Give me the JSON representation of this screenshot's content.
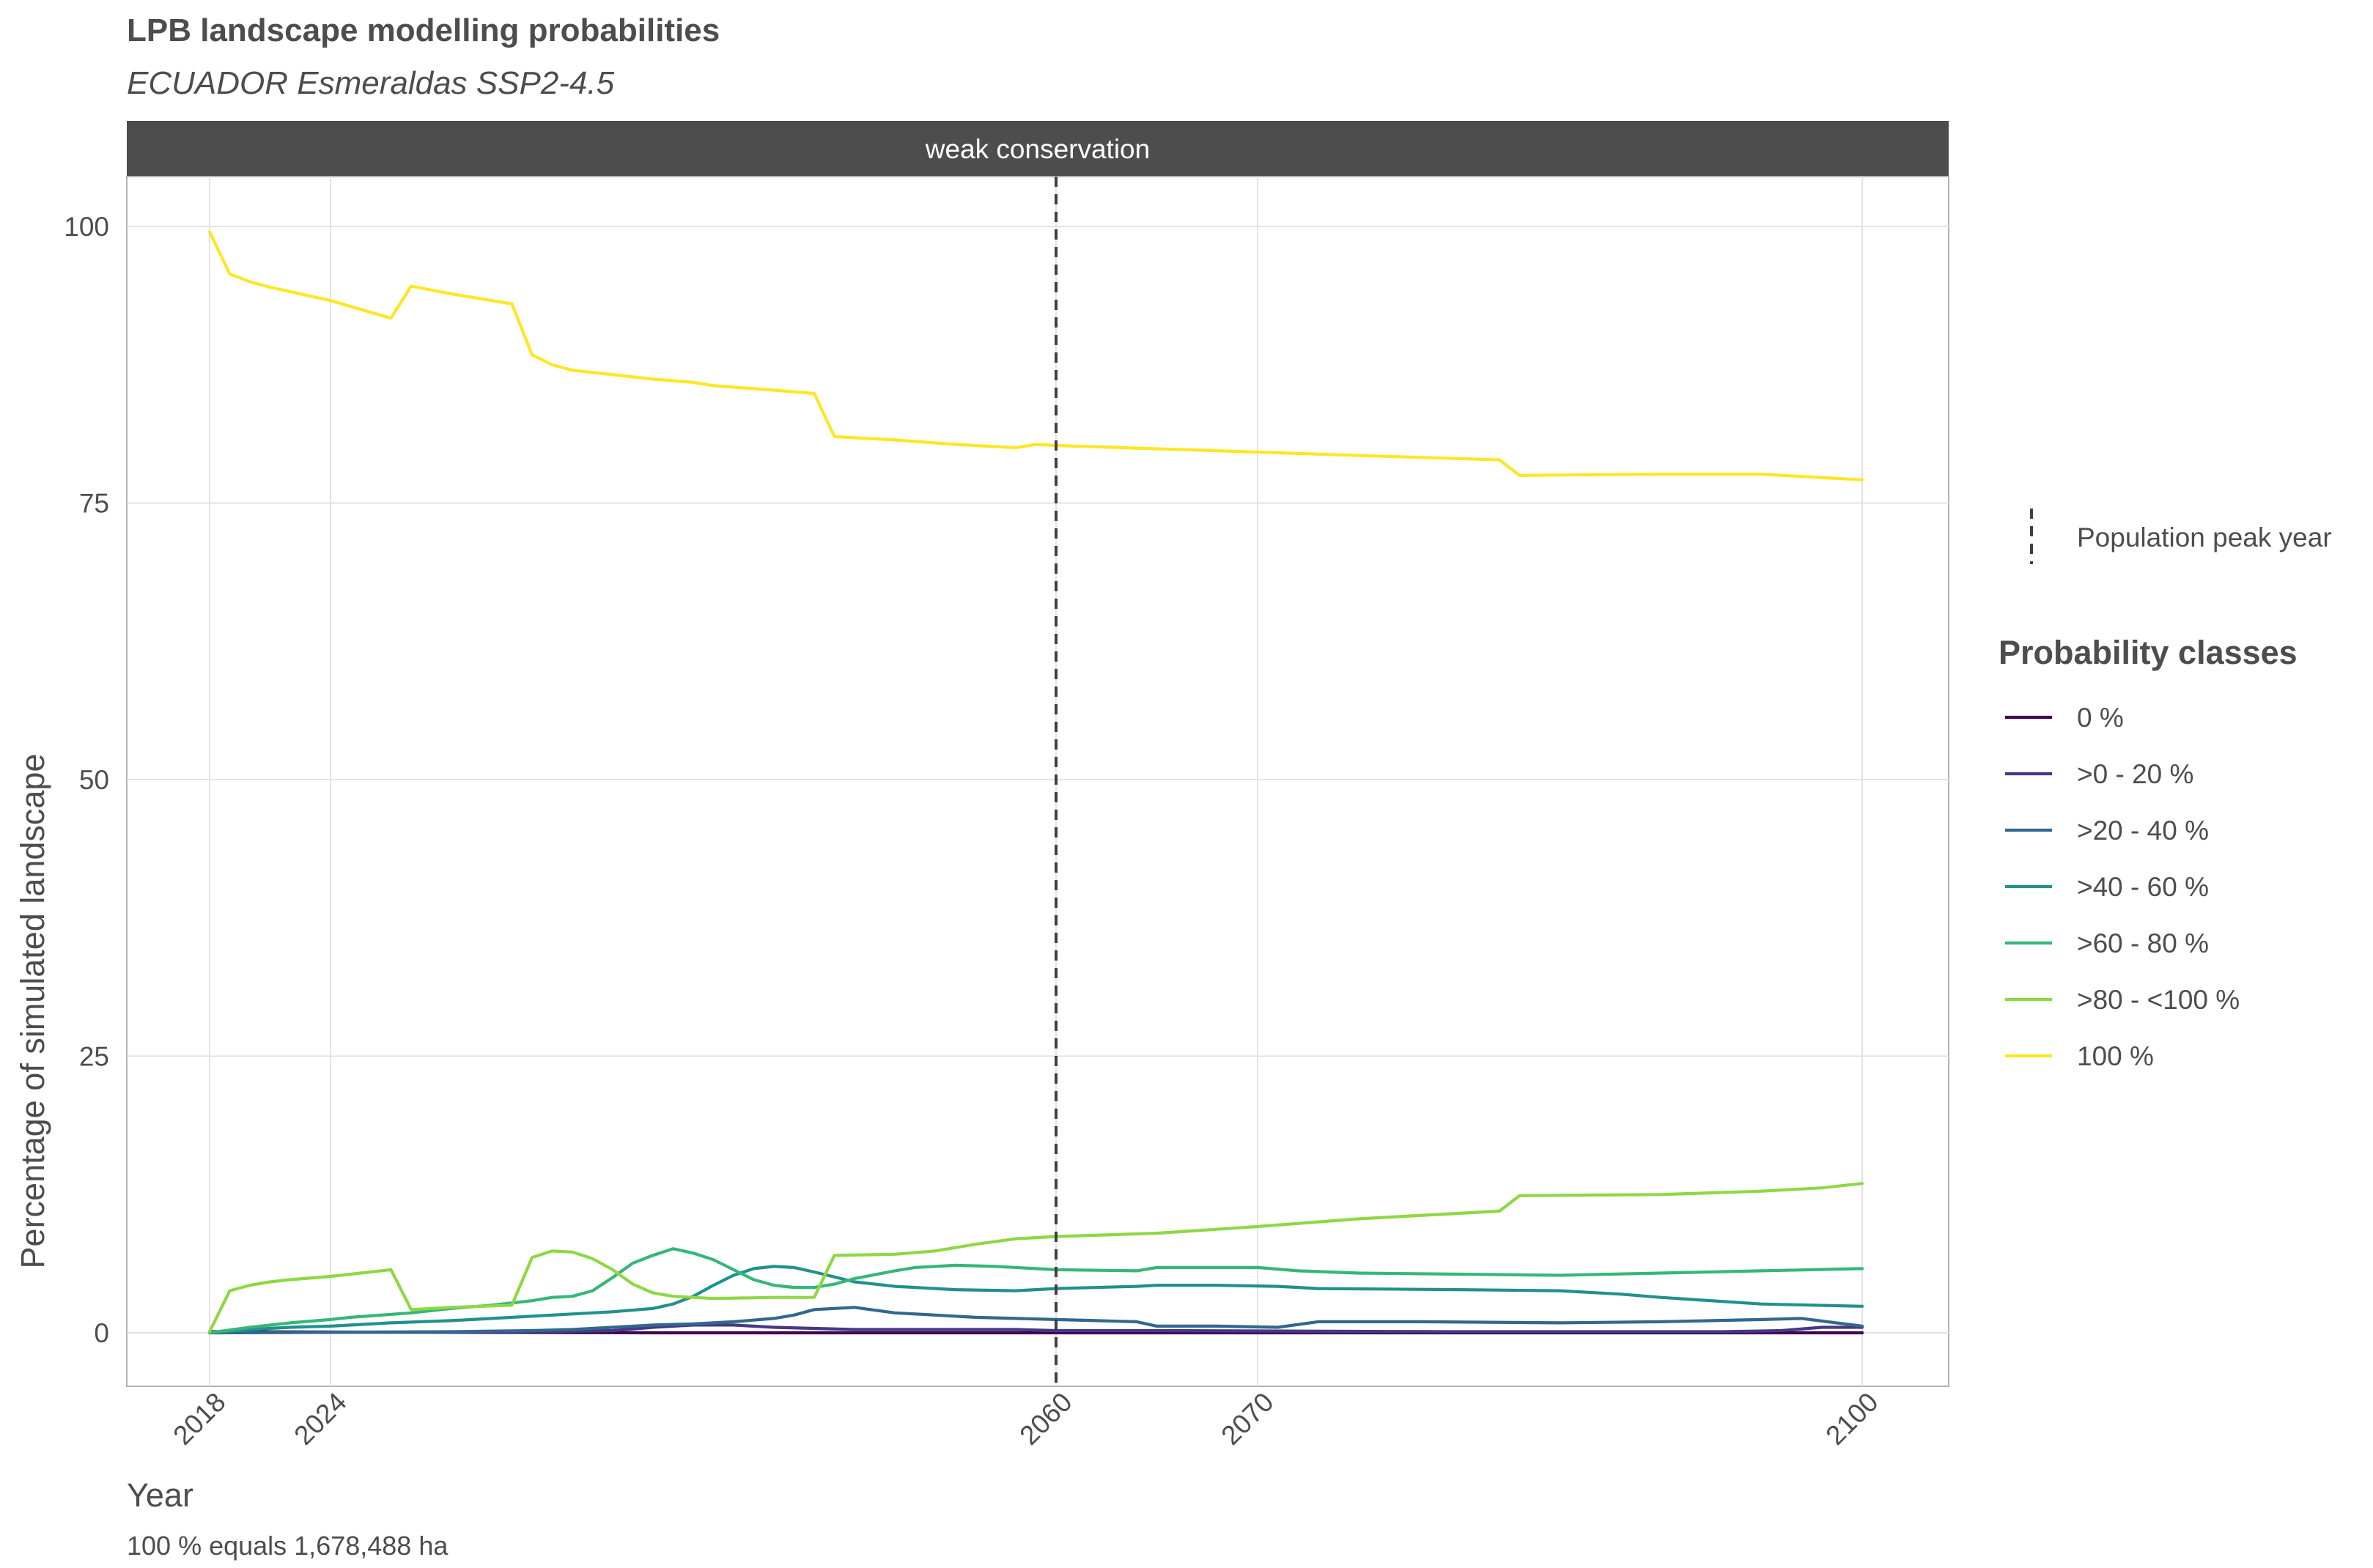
{
  "title": "LPB landscape modelling probabilities",
  "subtitle": "ECUADOR Esmeraldas SSP2-4.5",
  "caption": "100 % equals 1,678,488 ha",
  "colors": {
    "strip": "#4d4d4d",
    "vline": "#404040",
    "panel_border": "#b3b3b3"
  },
  "chart_data": {
    "type": "line",
    "facet": "weak conservation",
    "xlabel": "Year",
    "ylabel": "Percentage of simulated landscape",
    "xlim": [
      2018,
      2100
    ],
    "ylim": [
      -5,
      104
    ],
    "x_ticks": [
      2018,
      2024,
      2060,
      2070,
      2100
    ],
    "y_ticks": [
      0,
      25,
      50,
      75,
      100
    ],
    "grid": true,
    "vline": {
      "x": 2060,
      "label": "Population peak year",
      "style": "dashed"
    },
    "legend_title": "Probability classes",
    "legend_position": "right",
    "series": [
      {
        "name": "0 %",
        "color": "#440154",
        "points": [
          [
            2018,
            0.1
          ],
          [
            2040,
            0.0
          ],
          [
            2060,
            0.0
          ],
          [
            2080,
            0.0
          ],
          [
            2100,
            0.0
          ]
        ]
      },
      {
        "name": ">0 - 20 %",
        "color": "#443a83",
        "points": [
          [
            2018,
            0.0
          ],
          [
            2035,
            0.1
          ],
          [
            2038,
            0.2
          ],
          [
            2040,
            0.5
          ],
          [
            2042,
            0.7
          ],
          [
            2044,
            0.7
          ],
          [
            2046,
            0.5
          ],
          [
            2048,
            0.4
          ],
          [
            2050,
            0.3
          ],
          [
            2055,
            0.3
          ],
          [
            2058,
            0.3
          ],
          [
            2060,
            0.2
          ],
          [
            2065,
            0.2
          ],
          [
            2080,
            0.1
          ],
          [
            2093,
            0.1
          ],
          [
            2096,
            0.2
          ],
          [
            2098,
            0.5
          ],
          [
            2100,
            0.5
          ]
        ]
      },
      {
        "name": ">20 - 40 %",
        "color": "#31688e",
        "points": [
          [
            2018,
            0.0
          ],
          [
            2024,
            0.05
          ],
          [
            2030,
            0.1
          ],
          [
            2034,
            0.2
          ],
          [
            2036,
            0.3
          ],
          [
            2038,
            0.5
          ],
          [
            2040,
            0.7
          ],
          [
            2042,
            0.8
          ],
          [
            2044,
            1.0
          ],
          [
            2046,
            1.3
          ],
          [
            2047,
            1.6
          ],
          [
            2048,
            2.1
          ],
          [
            2050,
            2.3
          ],
          [
            2052,
            1.8
          ],
          [
            2054,
            1.6
          ],
          [
            2056,
            1.4
          ],
          [
            2058,
            1.3
          ],
          [
            2060,
            1.2
          ],
          [
            2062,
            1.1
          ],
          [
            2064,
            1.0
          ],
          [
            2065,
            0.6
          ],
          [
            2068,
            0.6
          ],
          [
            2071,
            0.5
          ],
          [
            2073,
            1.0
          ],
          [
            2078,
            1.0
          ],
          [
            2085,
            0.9
          ],
          [
            2090,
            1.0
          ],
          [
            2095,
            1.2
          ],
          [
            2097,
            1.3
          ],
          [
            2100,
            0.6
          ]
        ]
      },
      {
        "name": ">40 - 60 %",
        "color": "#21918c",
        "points": [
          [
            2018,
            0.0
          ],
          [
            2020,
            0.3
          ],
          [
            2022,
            0.5
          ],
          [
            2024,
            0.6
          ],
          [
            2027,
            0.9
          ],
          [
            2030,
            1.1
          ],
          [
            2033,
            1.4
          ],
          [
            2036,
            1.7
          ],
          [
            2038,
            1.9
          ],
          [
            2040,
            2.2
          ],
          [
            2041,
            2.6
          ],
          [
            2042,
            3.3
          ],
          [
            2043,
            4.3
          ],
          [
            2044,
            5.2
          ],
          [
            2045,
            5.8
          ],
          [
            2046,
            6.0
          ],
          [
            2047,
            5.9
          ],
          [
            2048,
            5.5
          ],
          [
            2050,
            4.6
          ],
          [
            2052,
            4.2
          ],
          [
            2055,
            3.9
          ],
          [
            2058,
            3.8
          ],
          [
            2060,
            4.0
          ],
          [
            2064,
            4.2
          ],
          [
            2065,
            4.3
          ],
          [
            2068,
            4.3
          ],
          [
            2071,
            4.2
          ],
          [
            2073,
            4.0
          ],
          [
            2080,
            3.9
          ],
          [
            2085,
            3.8
          ],
          [
            2088,
            3.5
          ],
          [
            2090,
            3.2
          ],
          [
            2095,
            2.6
          ],
          [
            2100,
            2.4
          ]
        ]
      },
      {
        "name": ">60 - 80 %",
        "color": "#35b779",
        "points": [
          [
            2018,
            0.0
          ],
          [
            2020,
            0.5
          ],
          [
            2022,
            0.9
          ],
          [
            2024,
            1.2
          ],
          [
            2025,
            1.4
          ],
          [
            2028,
            1.8
          ],
          [
            2030,
            2.2
          ],
          [
            2032,
            2.5
          ],
          [
            2034,
            2.9
          ],
          [
            2035,
            3.2
          ],
          [
            2036,
            3.3
          ],
          [
            2037,
            3.8
          ],
          [
            2038,
            5.0
          ],
          [
            2039,
            6.3
          ],
          [
            2040,
            7.0
          ],
          [
            2041,
            7.6
          ],
          [
            2042,
            7.2
          ],
          [
            2043,
            6.6
          ],
          [
            2044,
            5.7
          ],
          [
            2045,
            4.8
          ],
          [
            2046,
            4.3
          ],
          [
            2047,
            4.1
          ],
          [
            2048,
            4.1
          ],
          [
            2049,
            4.4
          ],
          [
            2050,
            4.9
          ],
          [
            2052,
            5.6
          ],
          [
            2053,
            5.9
          ],
          [
            2055,
            6.1
          ],
          [
            2057,
            6.0
          ],
          [
            2060,
            5.7
          ],
          [
            2064,
            5.6
          ],
          [
            2065,
            5.9
          ],
          [
            2070,
            5.9
          ],
          [
            2072,
            5.6
          ],
          [
            2075,
            5.4
          ],
          [
            2080,
            5.3
          ],
          [
            2085,
            5.2
          ],
          [
            2090,
            5.4
          ],
          [
            2095,
            5.6
          ],
          [
            2100,
            5.8
          ]
        ]
      },
      {
        "name": ">80 - <100 %",
        "color": "#8fd744",
        "points": [
          [
            2018,
            0.1
          ],
          [
            2019,
            3.8
          ],
          [
            2020,
            4.3
          ],
          [
            2021,
            4.6
          ],
          [
            2022,
            4.8
          ],
          [
            2024,
            5.1
          ],
          [
            2027,
            5.7
          ],
          [
            2028,
            2.1
          ],
          [
            2030,
            2.3
          ],
          [
            2033,
            2.5
          ],
          [
            2034,
            6.8
          ],
          [
            2035,
            7.4
          ],
          [
            2036,
            7.3
          ],
          [
            2037,
            6.7
          ],
          [
            2038,
            5.7
          ],
          [
            2039,
            4.4
          ],
          [
            2040,
            3.6
          ],
          [
            2041,
            3.3
          ],
          [
            2042,
            3.2
          ],
          [
            2043,
            3.1
          ],
          [
            2046,
            3.2
          ],
          [
            2048,
            3.2
          ],
          [
            2049,
            7.0
          ],
          [
            2052,
            7.1
          ],
          [
            2054,
            7.4
          ],
          [
            2056,
            8.0
          ],
          [
            2058,
            8.5
          ],
          [
            2059,
            8.6
          ],
          [
            2060,
            8.7
          ],
          [
            2065,
            9.0
          ],
          [
            2070,
            9.6
          ],
          [
            2075,
            10.3
          ],
          [
            2082,
            11.0
          ],
          [
            2083,
            12.4
          ],
          [
            2090,
            12.5
          ],
          [
            2095,
            12.8
          ],
          [
            2098,
            13.1
          ],
          [
            2100,
            13.5
          ]
        ]
      },
      {
        "name": "100 %",
        "color": "#fde725",
        "points": [
          [
            2018,
            99.5
          ],
          [
            2019,
            95.7
          ],
          [
            2020,
            95.0
          ],
          [
            2021,
            94.5
          ],
          [
            2022,
            94.1
          ],
          [
            2024,
            93.3
          ],
          [
            2027,
            91.7
          ],
          [
            2028,
            94.6
          ],
          [
            2030,
            93.9
          ],
          [
            2033,
            93.0
          ],
          [
            2034,
            88.4
          ],
          [
            2035,
            87.5
          ],
          [
            2036,
            87.0
          ],
          [
            2037,
            86.8
          ],
          [
            2040,
            86.2
          ],
          [
            2042,
            85.9
          ],
          [
            2043,
            85.6
          ],
          [
            2046,
            85.2
          ],
          [
            2048,
            84.9
          ],
          [
            2049,
            81.0
          ],
          [
            2052,
            80.7
          ],
          [
            2055,
            80.3
          ],
          [
            2058,
            80.0
          ],
          [
            2059,
            80.3
          ],
          [
            2060,
            80.2
          ],
          [
            2065,
            79.9
          ],
          [
            2070,
            79.6
          ],
          [
            2075,
            79.3
          ],
          [
            2082,
            78.9
          ],
          [
            2083,
            77.5
          ],
          [
            2090,
            77.6
          ],
          [
            2095,
            77.6
          ],
          [
            2100,
            77.1
          ]
        ]
      }
    ]
  }
}
